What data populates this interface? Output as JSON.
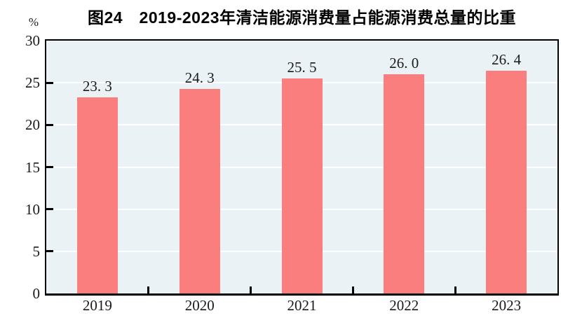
{
  "page": {
    "background_color": "#FFFFFF"
  },
  "chart_data": {
    "type": "bar",
    "title": "图24　2019-2023年清洁能源消费量占能源消费总量的比重",
    "unit": "%",
    "categories": [
      "2019",
      "2020",
      "2021",
      "2022",
      "2023"
    ],
    "values": [
      23.3,
      24.3,
      25.5,
      26.0,
      26.4
    ],
    "value_labels": [
      "23. 3",
      "24. 3",
      "25. 5",
      "26. 0",
      "26. 4"
    ],
    "xlabel": "",
    "ylabel": "%",
    "ylim": [
      0,
      30
    ],
    "yticks": [
      0,
      5,
      10,
      15,
      20,
      25,
      30
    ],
    "grid": "horizontal",
    "legend_position": "none",
    "colors": {
      "bar": "#FA7E7E",
      "plot_background": "#EBF2F5",
      "gridline": "#FFFFFF",
      "axis_border": "#000000",
      "text": "#1A1A1A"
    }
  }
}
